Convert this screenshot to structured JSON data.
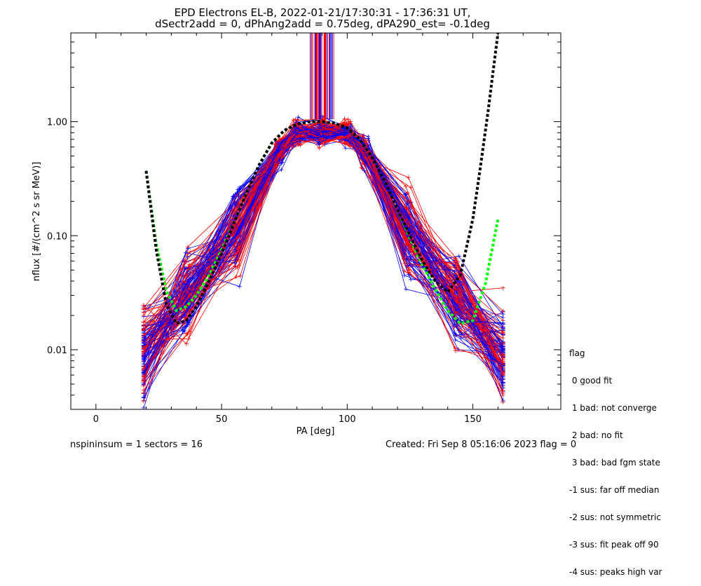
{
  "title_line1": "EPD Electrons EL-B, 2022-01-21/17:30:31 - 17:36:31 UT,",
  "title_line2": "dSectr2add = 0, dPhAng2add = 0.75deg, dPA290_est=  -0.1deg",
  "footer_left": "nspininsum =  1  sectors = 16",
  "footer_right": "Created: Fri Sep  8 05:16:06 2023    flag = 0",
  "legend": {
    "title": "flag",
    "entries": [
      " 0 good fit",
      " 1 bad: not converge",
      " 2 bad: no fit",
      " 3 bad: bad fgm state",
      "-1 sus: far off median",
      "-2 sus: not symmetric",
      "-3 sus: fit peak off 90",
      "-4 sus: peaks high var"
    ]
  },
  "colors": {
    "data_a": "#ff0000",
    "data_b": "#0000ff",
    "fit_main": "#00ff00",
    "fit_alt": "#000000"
  },
  "chart_data": {
    "type": "line",
    "xlabel": "PA [deg]",
    "ylabel": "nflux [#/(cm^2 s sr MeV)]",
    "xlim": [
      -10,
      185
    ],
    "ylim": [
      0.003,
      6
    ],
    "yscale": "log",
    "xticks": [
      0,
      50,
      100,
      150
    ],
    "xtick_labels": [
      "0",
      "50",
      "100",
      "150"
    ],
    "yticks": [
      0.01,
      0.1,
      1.0
    ],
    "ytick_labels": [
      "0.01",
      "0.10",
      "1.00"
    ],
    "grid": false,
    "sector_pa": [
      19,
      36,
      56,
      73,
      80,
      90,
      100,
      107,
      124,
      144,
      162
    ],
    "envelope_center": [
      0.0095,
      0.028,
      0.11,
      0.55,
      0.8,
      0.82,
      0.8,
      0.55,
      0.11,
      0.028,
      0.0095
    ],
    "fits": [
      {
        "color": "#00ff00",
        "x": [
          20,
          24,
          28,
          32,
          36,
          40,
          45,
          50,
          55,
          60,
          65,
          70,
          75,
          80,
          85,
          90,
          95,
          100,
          105,
          110,
          115,
          120,
          125,
          130,
          135,
          140,
          145,
          150,
          155,
          160
        ],
        "y": [
          0.37,
          0.085,
          0.033,
          0.022,
          0.024,
          0.03,
          0.045,
          0.075,
          0.13,
          0.24,
          0.42,
          0.65,
          0.84,
          0.95,
          1.0,
          1.0,
          0.97,
          0.88,
          0.7,
          0.48,
          0.3,
          0.17,
          0.095,
          0.055,
          0.034,
          0.022,
          0.017,
          0.018,
          0.038,
          0.14
        ]
      },
      {
        "color": "#000000",
        "x": [
          20,
          24,
          28,
          32,
          36,
          40,
          45,
          50,
          55,
          60,
          65,
          70,
          75,
          80,
          85,
          90,
          95,
          100,
          105,
          110,
          115,
          120,
          125,
          130,
          135,
          140,
          145,
          150,
          153,
          156,
          160
        ],
        "y": [
          0.37,
          0.075,
          0.025,
          0.017,
          0.018,
          0.024,
          0.04,
          0.07,
          0.13,
          0.24,
          0.42,
          0.65,
          0.84,
          0.95,
          1.0,
          1.0,
          0.97,
          0.88,
          0.7,
          0.48,
          0.3,
          0.17,
          0.1,
          0.06,
          0.04,
          0.032,
          0.045,
          0.14,
          0.4,
          1.2,
          6.0
        ]
      }
    ]
  }
}
